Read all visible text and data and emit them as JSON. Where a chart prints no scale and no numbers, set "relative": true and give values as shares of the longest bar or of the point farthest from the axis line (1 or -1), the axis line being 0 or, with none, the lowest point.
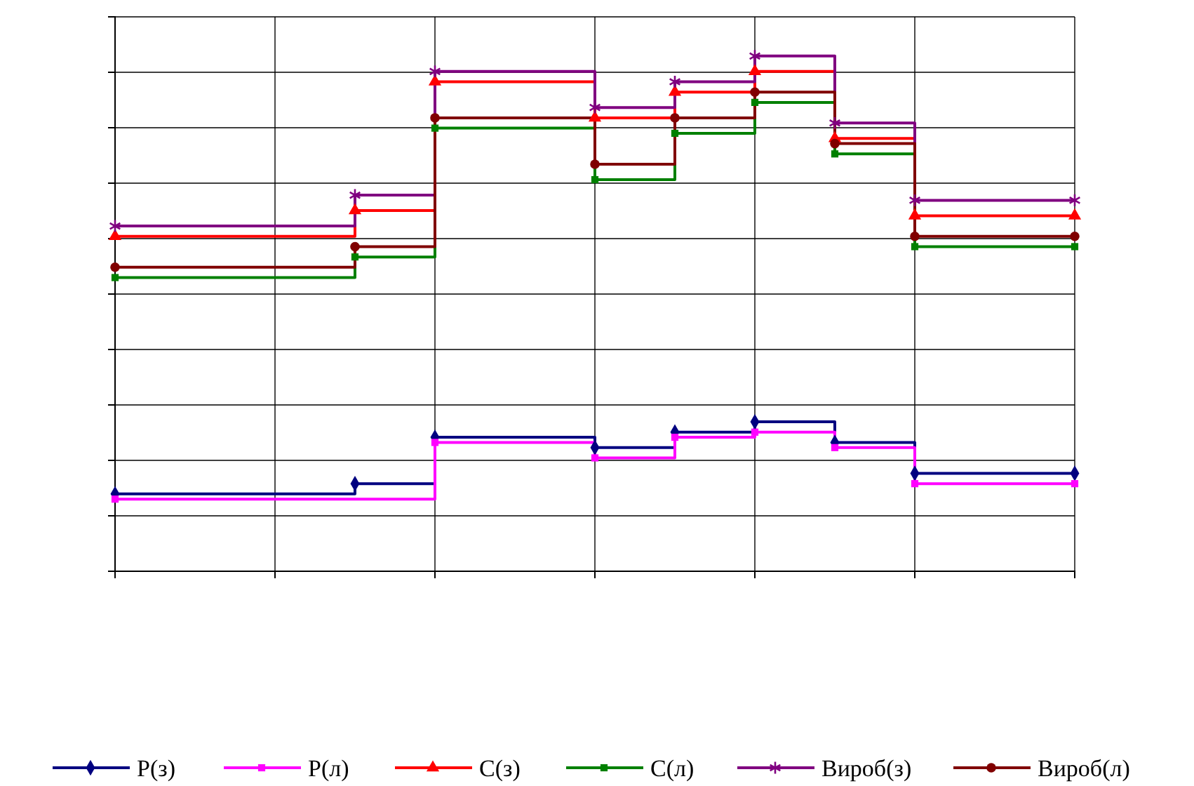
{
  "chart_data": {
    "type": "step",
    "relative": true,
    "grid": true,
    "legend": "bottom",
    "categories": [
      null,
      null,
      null,
      null,
      null,
      null,
      null,
      null,
      null,
      null,
      null,
      null,
      null
    ],
    "series": [
      {
        "name": "P(з)",
        "color": "#000080",
        "marker": "diamond",
        "values": [
          0.15,
          0.15,
          0.15,
          0.17,
          0.26,
          0.26,
          0.24,
          0.27,
          0.29,
          0.25,
          0.19,
          0.19,
          0.19
        ]
      },
      {
        "name": "P(л)",
        "color": "#ff00ff",
        "marker": "square",
        "values": [
          0.14,
          0.14,
          0.14,
          0.14,
          0.25,
          0.25,
          0.22,
          0.26,
          0.27,
          0.24,
          0.17,
          0.17,
          0.17
        ]
      },
      {
        "name": "C(з)",
        "color": "#ff0000",
        "marker": "triangle",
        "values": [
          0.65,
          0.65,
          0.65,
          0.7,
          0.95,
          0.95,
          0.88,
          0.93,
          0.97,
          0.84,
          0.69,
          0.69,
          0.69
        ]
      },
      {
        "name": "C(л)",
        "color": "#008000",
        "marker": "square",
        "values": [
          0.57,
          0.57,
          0.57,
          0.61,
          0.86,
          0.86,
          0.76,
          0.85,
          0.91,
          0.81,
          0.63,
          0.63,
          0.63
        ]
      },
      {
        "name": "Вироб(з)",
        "color": "#800080",
        "marker": "cross",
        "values": [
          0.67,
          0.67,
          0.67,
          0.73,
          0.97,
          0.97,
          0.9,
          0.95,
          1,
          0.87,
          0.72,
          0.72,
          0.72
        ]
      },
      {
        "name": "Вироб(л)",
        "color": "#800000",
        "marker": "circle",
        "values": [
          0.59,
          0.59,
          0.59,
          0.63,
          0.88,
          0.88,
          0.79,
          0.88,
          0.93,
          0.83,
          0.65,
          0.65,
          0.65
        ]
      }
    ]
  }
}
